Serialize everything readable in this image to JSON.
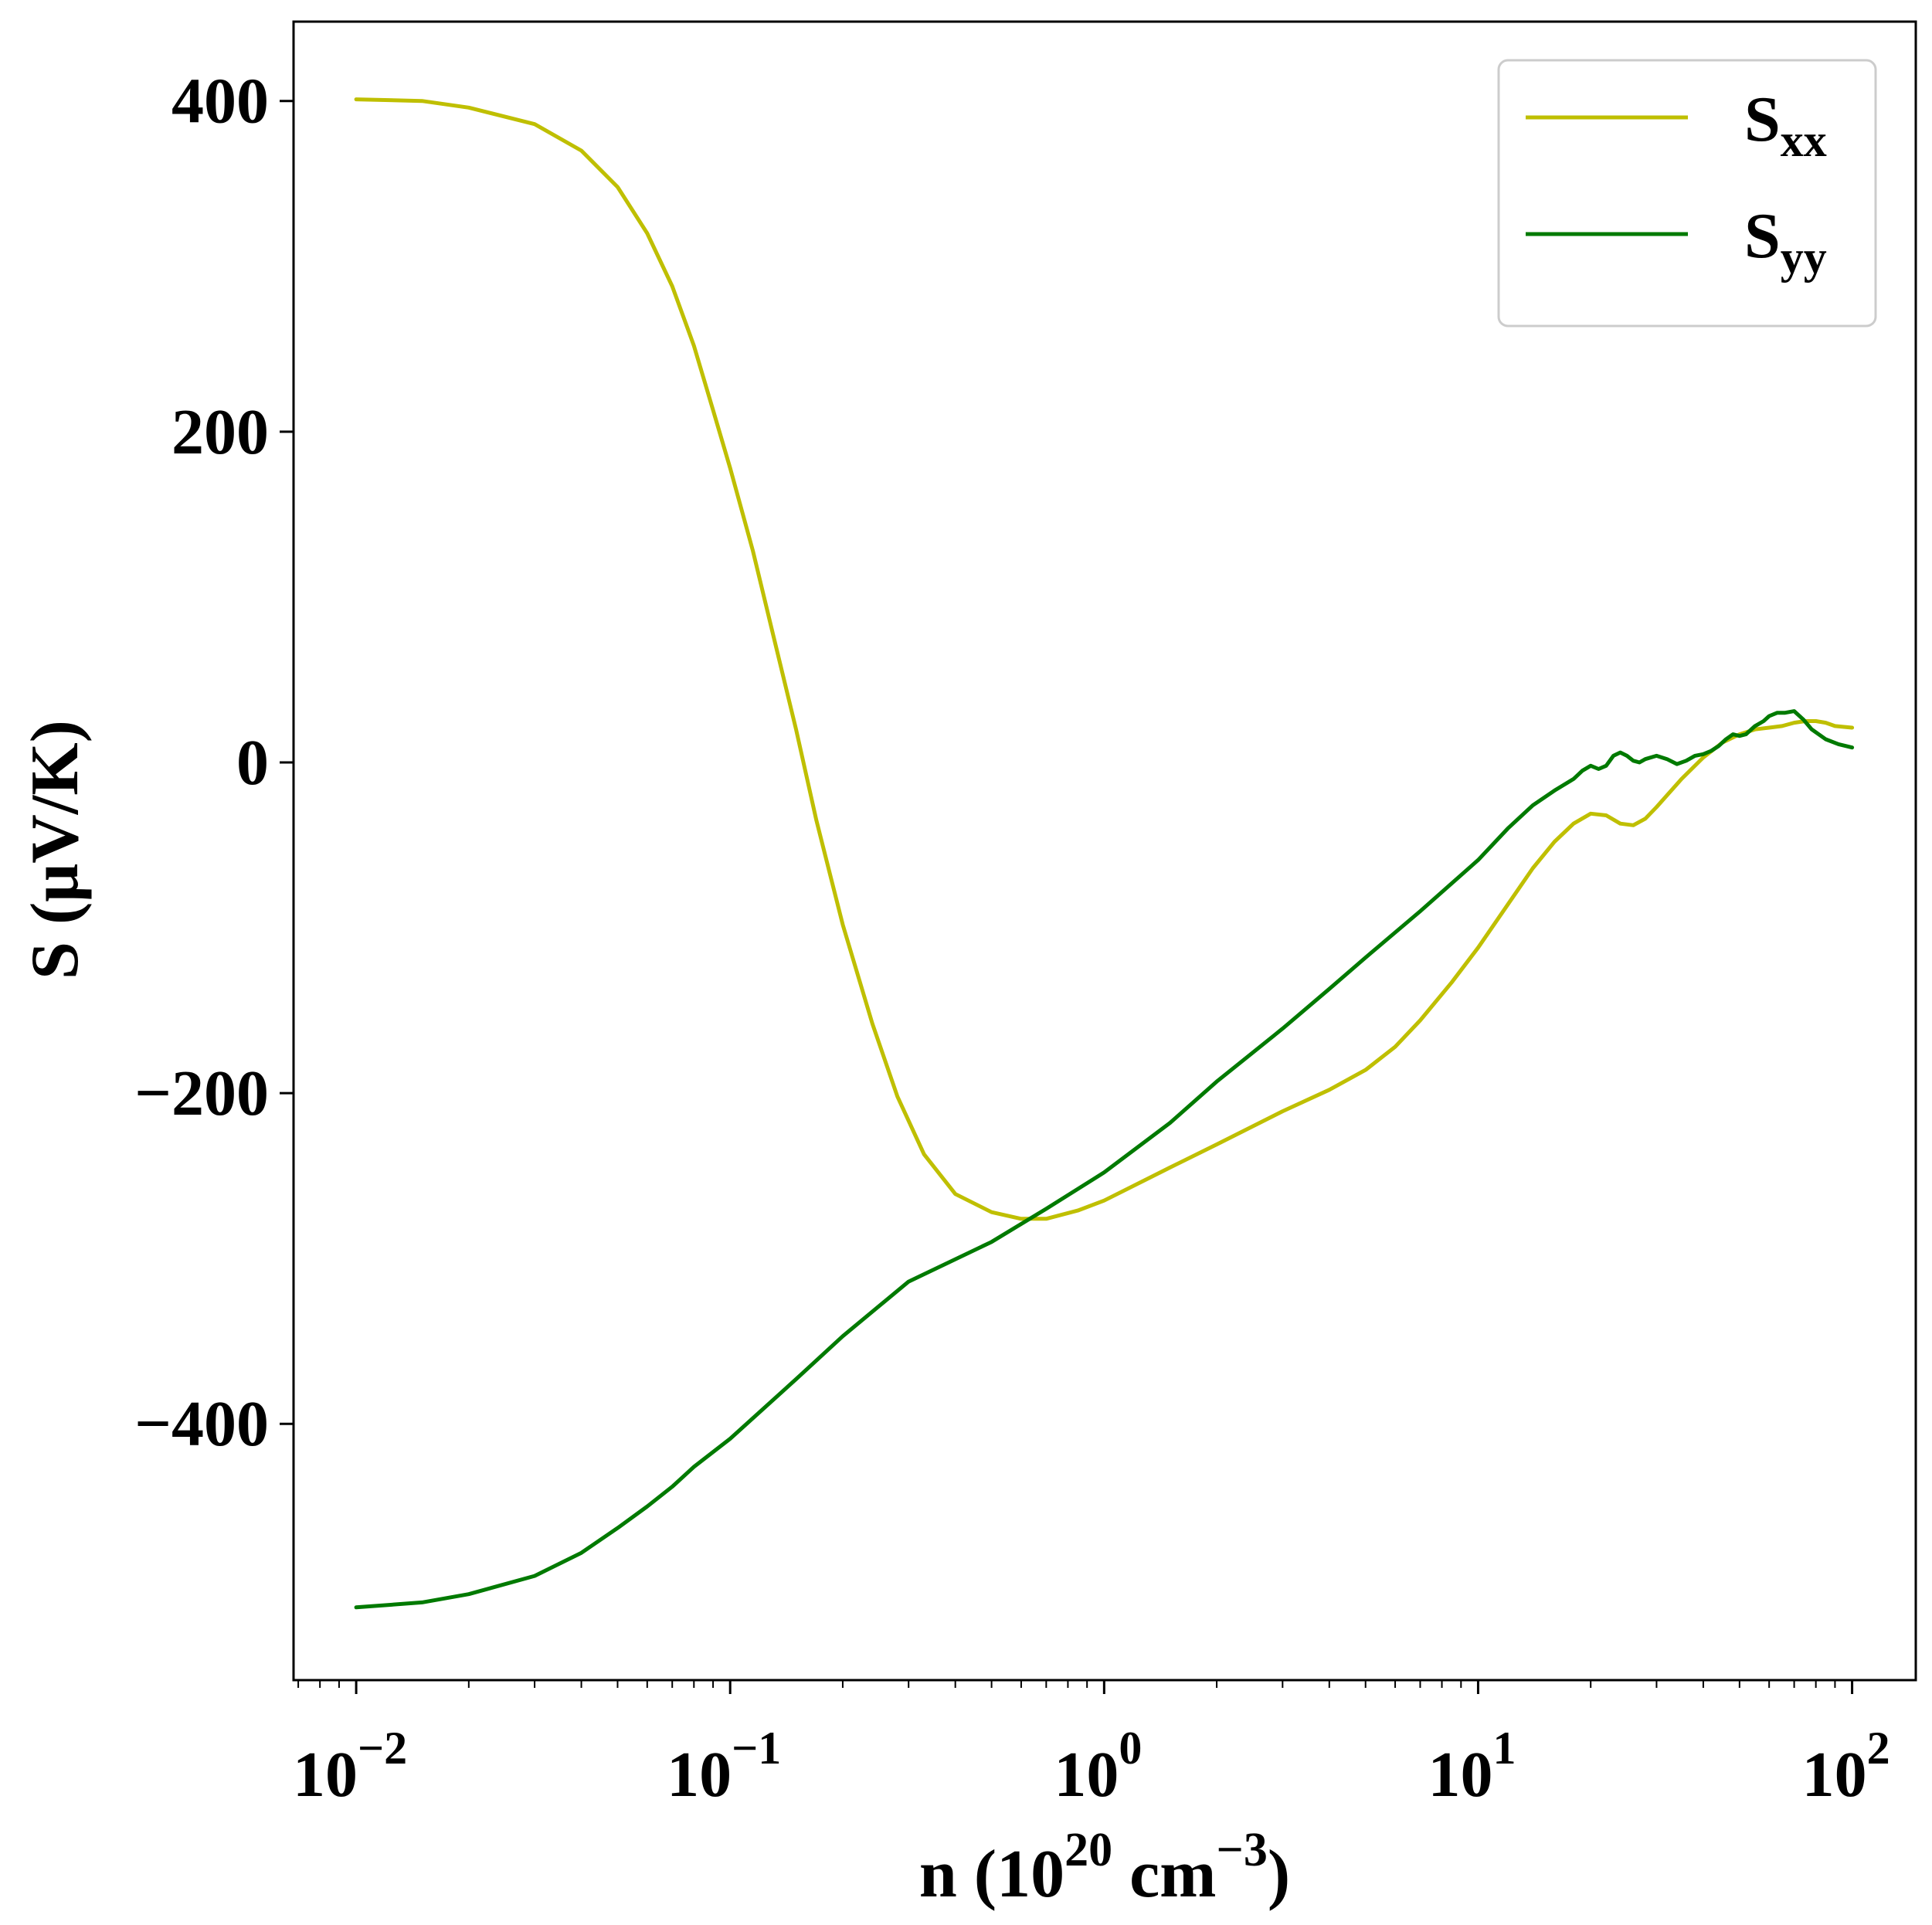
{
  "chart_data": {
    "type": "line",
    "xlabel": {
      "base": "n (10",
      "sup1": "20",
      "mid": " cm",
      "sup2": "−3",
      "end": ")"
    },
    "ylabel": "S (μV/K)",
    "x_scale": "log",
    "xlim": [
      0.0068,
      148
    ],
    "ylim": [
      -555,
      448
    ],
    "xticks": [
      {
        "value": 0.01,
        "base": "10",
        "exp": "−2"
      },
      {
        "value": 0.1,
        "base": "10",
        "exp": "−1"
      },
      {
        "value": 1,
        "base": "10",
        "exp": "0"
      },
      {
        "value": 10,
        "base": "10",
        "exp": "1"
      },
      {
        "value": 100,
        "base": "10",
        "exp": "2"
      }
    ],
    "yticks": [
      {
        "value": 400,
        "label": "400"
      },
      {
        "value": 200,
        "label": "200"
      },
      {
        "value": 0,
        "label": "0"
      },
      {
        "value": -200,
        "label": "−200"
      },
      {
        "value": -400,
        "label": "−400"
      }
    ],
    "grid": false,
    "legend_position": "top-right",
    "series": [
      {
        "name": "S",
        "subscript": "xx",
        "color": "#bfbf00",
        "points": [
          [
            0.01,
            401
          ],
          [
            0.015,
            400
          ],
          [
            0.02,
            396
          ],
          [
            0.03,
            386
          ],
          [
            0.04,
            370
          ],
          [
            0.05,
            348
          ],
          [
            0.06,
            320
          ],
          [
            0.07,
            288
          ],
          [
            0.08,
            252
          ],
          [
            0.09,
            213
          ],
          [
            0.1,
            178
          ],
          [
            0.115,
            128
          ],
          [
            0.13,
            78
          ],
          [
            0.15,
            20
          ],
          [
            0.17,
            -35
          ],
          [
            0.2,
            -98
          ],
          [
            0.24,
            -158
          ],
          [
            0.28,
            -202
          ],
          [
            0.33,
            -237
          ],
          [
            0.4,
            -261
          ],
          [
            0.5,
            -272
          ],
          [
            0.6,
            -276
          ],
          [
            0.7,
            -276
          ],
          [
            0.85,
            -271
          ],
          [
            1.0,
            -265
          ],
          [
            1.5,
            -245
          ],
          [
            2.0,
            -231
          ],
          [
            3.0,
            -211
          ],
          [
            4.0,
            -198
          ],
          [
            5.0,
            -186
          ],
          [
            6.0,
            -172
          ],
          [
            7.0,
            -156
          ],
          [
            8.5,
            -133
          ],
          [
            10,
            -112
          ],
          [
            12,
            -86
          ],
          [
            14,
            -64
          ],
          [
            16,
            -48
          ],
          [
            18,
            -37
          ],
          [
            20,
            -31
          ],
          [
            22,
            -32
          ],
          [
            24,
            -37
          ],
          [
            26,
            -38
          ],
          [
            28,
            -34
          ],
          [
            30,
            -27
          ],
          [
            35,
            -10
          ],
          [
            40,
            3
          ],
          [
            45,
            12
          ],
          [
            50,
            17
          ],
          [
            55,
            20
          ],
          [
            60,
            21
          ],
          [
            65,
            22
          ],
          [
            70,
            24
          ],
          [
            75,
            25
          ],
          [
            80,
            25
          ],
          [
            85,
            24
          ],
          [
            90,
            22
          ],
          [
            100,
            21
          ]
        ]
      },
      {
        "name": "S",
        "subscript": "yy",
        "color": "#007a00",
        "points": [
          [
            0.01,
            -511
          ],
          [
            0.015,
            -508
          ],
          [
            0.02,
            -503
          ],
          [
            0.03,
            -492
          ],
          [
            0.04,
            -478
          ],
          [
            0.05,
            -463
          ],
          [
            0.06,
            -450
          ],
          [
            0.07,
            -438
          ],
          [
            0.08,
            -426
          ],
          [
            0.1,
            -409
          ],
          [
            0.15,
            -373
          ],
          [
            0.2,
            -347
          ],
          [
            0.3,
            -314
          ],
          [
            0.5,
            -290
          ],
          [
            0.7,
            -270
          ],
          [
            1.0,
            -248
          ],
          [
            1.5,
            -218
          ],
          [
            2.0,
            -193
          ],
          [
            3.0,
            -161
          ],
          [
            4.0,
            -137
          ],
          [
            5.0,
            -118
          ],
          [
            7.0,
            -90
          ],
          [
            10,
            -59
          ],
          [
            12,
            -40
          ],
          [
            14,
            -26
          ],
          [
            16,
            -17
          ],
          [
            18,
            -10
          ],
          [
            19,
            -5
          ],
          [
            20,
            -2
          ],
          [
            21,
            -4
          ],
          [
            22,
            -2
          ],
          [
            23,
            4
          ],
          [
            24,
            6
          ],
          [
            25,
            4
          ],
          [
            26,
            1
          ],
          [
            27,
            0
          ],
          [
            28,
            2
          ],
          [
            30,
            4
          ],
          [
            32,
            2
          ],
          [
            34,
            -1
          ],
          [
            36,
            1
          ],
          [
            38,
            4
          ],
          [
            40,
            5
          ],
          [
            42,
            7
          ],
          [
            44,
            10
          ],
          [
            46,
            14
          ],
          [
            48,
            17
          ],
          [
            50,
            16
          ],
          [
            52,
            17
          ],
          [
            55,
            22
          ],
          [
            58,
            25
          ],
          [
            60,
            28
          ],
          [
            63,
            30
          ],
          [
            66,
            30
          ],
          [
            70,
            31
          ],
          [
            74,
            26
          ],
          [
            78,
            20
          ],
          [
            85,
            14
          ],
          [
            92,
            11
          ],
          [
            100,
            9
          ]
        ]
      }
    ]
  }
}
